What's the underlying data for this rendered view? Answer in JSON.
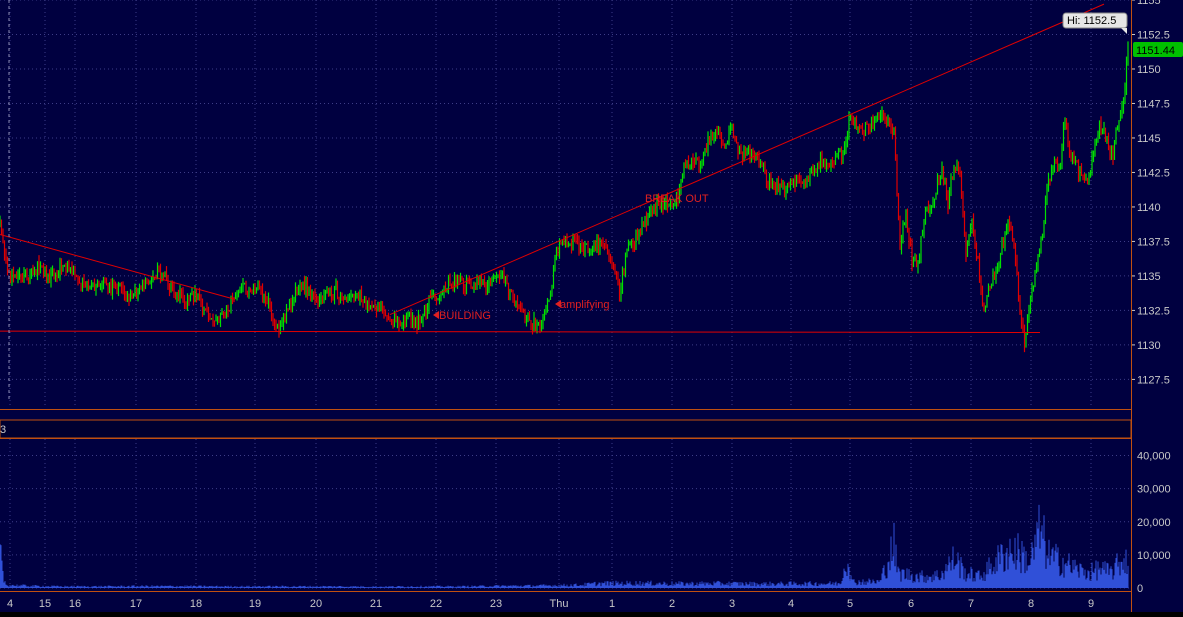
{
  "chart_data": [
    {
      "type": "candlestick",
      "title": "",
      "x_ticks": [
        "4",
        "15",
        "16",
        "17",
        "18",
        "19",
        "20",
        "21",
        "22",
        "23",
        "Thu",
        "1",
        "2",
        "3",
        "4",
        "5",
        "6",
        "7",
        "8",
        "9"
      ],
      "y_ticks": [
        1127.5,
        1130,
        1132.5,
        1135,
        1137.5,
        1140,
        1142.5,
        1145,
        1147.5,
        1150,
        1152.5,
        1155
      ],
      "ylim": [
        1125.5,
        1155
      ],
      "price_path": [
        [
          0.0,
          1138.6
        ],
        [
          5.0,
          1136.5
        ],
        [
          10.0,
          1135.0
        ],
        [
          18.0,
          1135.3
        ],
        [
          28.0,
          1135.0
        ],
        [
          38.0,
          1135.6
        ],
        [
          48.0,
          1134.8
        ],
        [
          58.0,
          1135.4
        ],
        [
          68.0,
          1135.8
        ],
        [
          78.0,
          1134.6
        ],
        [
          88.0,
          1134.3
        ],
        [
          98.0,
          1134.4
        ],
        [
          108.0,
          1134.0
        ],
        [
          118.0,
          1134.3
        ],
        [
          128.0,
          1133.4
        ],
        [
          138.0,
          1134.1
        ],
        [
          148.0,
          1134.6
        ],
        [
          158.0,
          1135.1
        ],
        [
          163.0,
          1135.4
        ],
        [
          170.0,
          1134.0
        ],
        [
          178.0,
          1133.6
        ],
        [
          186.0,
          1133.0
        ],
        [
          194.0,
          1133.8
        ],
        [
          202.0,
          1132.9
        ],
        [
          210.0,
          1132.1
        ],
        [
          218.0,
          1131.7
        ],
        [
          226.0,
          1132.3
        ],
        [
          234.0,
          1133.6
        ],
        [
          242.0,
          1134.3
        ],
        [
          250.0,
          1133.8
        ],
        [
          258.0,
          1134.2
        ],
        [
          266.0,
          1133.5
        ],
        [
          274.0,
          1131.7
        ],
        [
          280.0,
          1131.2
        ],
        [
          288.0,
          1132.7
        ],
        [
          296.0,
          1133.8
        ],
        [
          304.0,
          1134.4
        ],
        [
          312.0,
          1133.5
        ],
        [
          320.0,
          1133.2
        ],
        [
          328.0,
          1133.5
        ],
        [
          336.0,
          1134.0
        ],
        [
          344.0,
          1132.9
        ],
        [
          352.0,
          1133.8
        ],
        [
          360.0,
          1133.4
        ],
        [
          368.0,
          1133.0
        ],
        [
          376.0,
          1132.6
        ],
        [
          384.0,
          1132.5
        ],
        [
          392.0,
          1131.9
        ],
        [
          400.0,
          1131.6
        ],
        [
          408.0,
          1131.9
        ],
        [
          416.0,
          1131.5
        ],
        [
          422.0,
          1132.0
        ],
        [
          430.0,
          1133.4
        ],
        [
          438.0,
          1133.6
        ],
        [
          446.0,
          1134.3
        ],
        [
          454.0,
          1134.7
        ],
        [
          462.0,
          1134.5
        ],
        [
          470.0,
          1134.1
        ],
        [
          478.0,
          1134.6
        ],
        [
          486.0,
          1134.2
        ],
        [
          494.0,
          1135.0
        ],
        [
          500.0,
          1135.3
        ],
        [
          508.0,
          1134.1
        ],
        [
          516.0,
          1133.1
        ],
        [
          524.0,
          1132.1
        ],
        [
          532.0,
          1131.6
        ],
        [
          540.0,
          1131.4
        ],
        [
          546.0,
          1132.5
        ],
        [
          552.0,
          1134.6
        ],
        [
          558.0,
          1136.9
        ],
        [
          566.0,
          1137.3
        ],
        [
          574.0,
          1137.6
        ],
        [
          582.0,
          1137.1
        ],
        [
          590.0,
          1136.9
        ],
        [
          598.0,
          1137.4
        ],
        [
          606.0,
          1136.8
        ],
        [
          614.0,
          1135.2
        ],
        [
          620.0,
          1133.7
        ],
        [
          626.0,
          1136.7
        ],
        [
          632.0,
          1137.2
        ],
        [
          640.0,
          1138.3
        ],
        [
          648.0,
          1139.3
        ],
        [
          656.0,
          1140.1
        ],
        [
          664.0,
          1140.4
        ],
        [
          672.0,
          1140.5
        ],
        [
          678.0,
          1140.9
        ],
        [
          684.0,
          1142.6
        ],
        [
          692.0,
          1143.6
        ],
        [
          700.0,
          1143.1
        ],
        [
          708.0,
          1144.6
        ],
        [
          716.0,
          1145.6
        ],
        [
          724.0,
          1144.6
        ],
        [
          732.0,
          1145.7
        ],
        [
          740.0,
          1143.7
        ],
        [
          748.0,
          1144.0
        ],
        [
          756.0,
          1143.6
        ],
        [
          764.0,
          1142.6
        ],
        [
          772.0,
          1141.6
        ],
        [
          780.0,
          1141.5
        ],
        [
          788.0,
          1141.2
        ],
        [
          796.0,
          1142.0
        ],
        [
          804.0,
          1141.6
        ],
        [
          812.0,
          1142.6
        ],
        [
          820.0,
          1143.5
        ],
        [
          828.0,
          1142.9
        ],
        [
          836.0,
          1143.7
        ],
        [
          844.0,
          1143.8
        ],
        [
          850.0,
          1146.8
        ],
        [
          856.0,
          1145.6
        ],
        [
          864.0,
          1145.6
        ],
        [
          872.0,
          1146.0
        ],
        [
          880.0,
          1146.9
        ],
        [
          888.0,
          1145.9
        ],
        [
          894.0,
          1145.4
        ],
        [
          900.0,
          1137.3
        ],
        [
          906.0,
          1139.4
        ],
        [
          912.0,
          1136.1
        ],
        [
          918.0,
          1135.8
        ],
        [
          924.0,
          1139.2
        ],
        [
          930.0,
          1140.1
        ],
        [
          936.0,
          1141.3
        ],
        [
          942.0,
          1142.6
        ],
        [
          948.0,
          1140.2
        ],
        [
          954.0,
          1143.1
        ],
        [
          960.0,
          1142.3
        ],
        [
          966.0,
          1136.4
        ],
        [
          972.0,
          1138.8
        ],
        [
          978.0,
          1136.1
        ],
        [
          984.0,
          1132.2
        ],
        [
          990.0,
          1134.3
        ],
        [
          996.0,
          1135.4
        ],
        [
          1002.0,
          1137.2
        ],
        [
          1008.0,
          1138.7
        ],
        [
          1014.0,
          1137.5
        ],
        [
          1020.0,
          1132.4
        ],
        [
          1024.0,
          1130.1
        ],
        [
          1030.0,
          1133.2
        ],
        [
          1036.0,
          1135.3
        ],
        [
          1042.0,
          1137.9
        ],
        [
          1048.0,
          1141.5
        ],
        [
          1054.0,
          1143.2
        ],
        [
          1060.0,
          1142.9
        ],
        [
          1064.0,
          1146.3
        ],
        [
          1070.0,
          1144.0
        ],
        [
          1076.0,
          1143.0
        ],
        [
          1082.0,
          1142.1
        ],
        [
          1088.0,
          1141.8
        ],
        [
          1094.0,
          1143.9
        ],
        [
          1100.0,
          1146.0
        ],
        [
          1106.0,
          1144.9
        ],
        [
          1112.0,
          1143.5
        ],
        [
          1118.0,
          1146.1
        ],
        [
          1124.0,
          1148.1
        ],
        [
          1128.0,
          1151.4
        ]
      ],
      "hi_label": "Hi: 1152.5",
      "last_price_label": "1151.44",
      "annotations": [
        "BUILDING",
        "amplifying",
        "BREAK OUT"
      ],
      "trendlines": [
        [
          [
            0.0,
            1138.0
          ],
          [
            235.0,
            1133.3
          ]
        ],
        [
          [
            0.0,
            1131.0
          ],
          [
            1040.0,
            1130.9
          ]
        ],
        [
          [
            390.0,
            1132.2
          ],
          [
            1104.0,
            1154.7
          ]
        ]
      ],
      "colors": {
        "up": "#00e000",
        "down": "#e00000",
        "background": "#000040",
        "grid": "#3d3d87",
        "trendline": "#e00000"
      }
    },
    {
      "type": "bar",
      "title": "",
      "label": "3",
      "y_ticks": [
        0,
        10000,
        20000,
        30000,
        40000
      ],
      "ylim": [
        0,
        45000
      ],
      "volume_profile": [
        [
          0.0,
          14000
        ],
        [
          3.0,
          5000
        ],
        [
          6.0,
          1200
        ],
        [
          30.0,
          800
        ],
        [
          60.0,
          600
        ],
        [
          100.0,
          600
        ],
        [
          140.0,
          700
        ],
        [
          180.0,
          700
        ],
        [
          220.0,
          600
        ],
        [
          260.0,
          600
        ],
        [
          300.0,
          600
        ],
        [
          340.0,
          600
        ],
        [
          380.0,
          500
        ],
        [
          420.0,
          600
        ],
        [
          460.0,
          600
        ],
        [
          500.0,
          800
        ],
        [
          540.0,
          900
        ],
        [
          580.0,
          1200
        ],
        [
          600.0,
          1800
        ],
        [
          640.0,
          1900
        ],
        [
          680.0,
          1700
        ],
        [
          720.0,
          1800
        ],
        [
          760.0,
          1600
        ],
        [
          800.0,
          1700
        ],
        [
          840.0,
          1800
        ],
        [
          848.0,
          13000
        ],
        [
          852.0,
          2500
        ],
        [
          880.0,
          2500
        ],
        [
          894.0,
          17000
        ],
        [
          898.0,
          6000
        ],
        [
          920.0,
          4500
        ],
        [
          940.0,
          5000
        ],
        [
          955.0,
          12000
        ],
        [
          965.0,
          6000
        ],
        [
          980.0,
          4500
        ],
        [
          1000.0,
          12000
        ],
        [
          1010.0,
          15000
        ],
        [
          1020.0,
          14000
        ],
        [
          1030.0,
          10000
        ],
        [
          1040.0,
          23000
        ],
        [
          1050.0,
          12000
        ],
        [
          1060.0,
          11000
        ],
        [
          1070.0,
          9000
        ],
        [
          1080.0,
          7000
        ],
        [
          1090.0,
          6000
        ],
        [
          1100.0,
          8000
        ],
        [
          1110.0,
          6000
        ],
        [
          1120.0,
          10000
        ],
        [
          1128.0,
          12000
        ]
      ]
    }
  ]
}
